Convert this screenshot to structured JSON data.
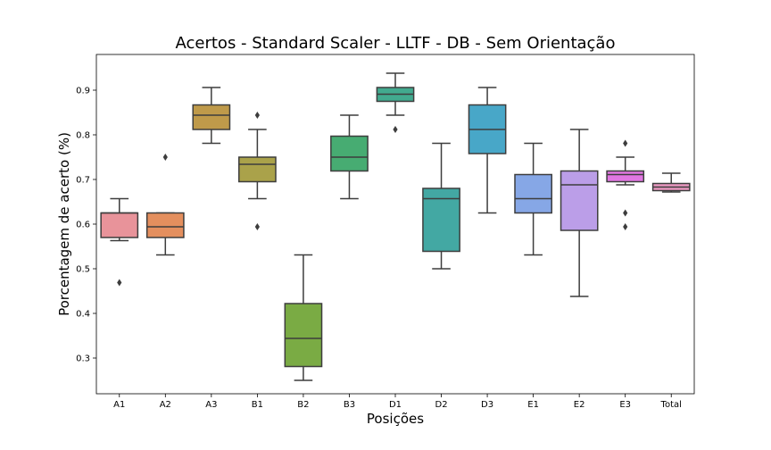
{
  "chart_data": {
    "type": "boxplot",
    "title": "Acertos - Standard Scaler - LLTF - DB - Sem Orientação",
    "xlabel": "Posições",
    "ylabel": "Porcentagem de acerto (%)",
    "ylim": [
      0.22,
      0.98
    ],
    "yticks": [
      "0.3",
      "0.4",
      "0.5",
      "0.6",
      "0.7",
      "0.8",
      "0.9"
    ],
    "grid": false,
    "categories": [
      "A1",
      "A2",
      "A3",
      "B1",
      "B2",
      "B3",
      "D1",
      "D2",
      "D3",
      "E1",
      "E2",
      "E3",
      "Total"
    ],
    "boxes": [
      {
        "label": "A1",
        "color": "#e8939a",
        "whisker_low": 0.563,
        "q1": 0.57,
        "median": 0.625,
        "q3": 0.625,
        "whisker_high": 0.657,
        "outliers": [
          0.469
        ]
      },
      {
        "label": "A2",
        "color": "#e48f5e",
        "whisker_low": 0.531,
        "q1": 0.57,
        "median": 0.594,
        "q3": 0.625,
        "whisker_high": 0.625,
        "outliers": [
          0.75
        ]
      },
      {
        "label": "A3",
        "color": "#bf9a4a",
        "whisker_low": 0.781,
        "q1": 0.812,
        "median": 0.844,
        "q3": 0.867,
        "whisker_high": 0.906,
        "outliers": []
      },
      {
        "label": "B1",
        "color": "#aaa24a",
        "whisker_low": 0.657,
        "q1": 0.695,
        "median": 0.734,
        "q3": 0.75,
        "whisker_high": 0.812,
        "outliers": [
          0.844,
          0.594
        ]
      },
      {
        "label": "B2",
        "color": "#7aab44",
        "whisker_low": 0.25,
        "q1": 0.281,
        "median": 0.344,
        "q3": 0.422,
        "whisker_high": 0.531,
        "outliers": []
      },
      {
        "label": "B3",
        "color": "#47ac72",
        "whisker_low": 0.657,
        "q1": 0.719,
        "median": 0.75,
        "q3": 0.797,
        "whisker_high": 0.844,
        "outliers": []
      },
      {
        "label": "D1",
        "color": "#42aa8f",
        "whisker_low": 0.844,
        "q1": 0.875,
        "median": 0.891,
        "q3": 0.906,
        "whisker_high": 0.938,
        "outliers": [
          0.812
        ]
      },
      {
        "label": "D2",
        "color": "#43a8a3",
        "whisker_low": 0.5,
        "q1": 0.539,
        "median": 0.657,
        "q3": 0.68,
        "whisker_high": 0.781,
        "outliers": []
      },
      {
        "label": "D3",
        "color": "#48a7c8",
        "whisker_low": 0.625,
        "q1": 0.758,
        "median": 0.812,
        "q3": 0.867,
        "whisker_high": 0.906,
        "outliers": []
      },
      {
        "label": "E1",
        "color": "#86a7e6",
        "whisker_low": 0.531,
        "q1": 0.625,
        "median": 0.657,
        "q3": 0.711,
        "whisker_high": 0.781,
        "outliers": []
      },
      {
        "label": "E2",
        "color": "#bb9ee8",
        "whisker_low": 0.438,
        "q1": 0.586,
        "median": 0.688,
        "q3": 0.719,
        "whisker_high": 0.812,
        "outliers": []
      },
      {
        "label": "E3",
        "color": "#e177e2",
        "whisker_low": 0.688,
        "q1": 0.695,
        "median": 0.711,
        "q3": 0.719,
        "whisker_high": 0.75,
        "outliers": [
          0.781,
          0.625,
          0.594
        ]
      },
      {
        "label": "Total",
        "color": "#ea98c0",
        "whisker_low": 0.672,
        "q1": 0.675,
        "median": 0.683,
        "q3": 0.691,
        "whisker_high": 0.714,
        "outliers": []
      }
    ]
  }
}
